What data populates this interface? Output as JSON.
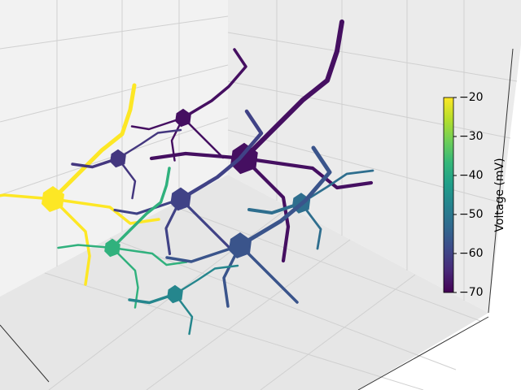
{
  "chart_data": {
    "type": "neuron",
    "values": [
      -20,
      -68,
      -62,
      -68,
      -60,
      -52,
      -38,
      -57,
      -47
    ],
    "colorbar": {
      "label": "Voltage (mV)",
      "colormap": "viridis",
      "lim": [
        -70,
        -20
      ],
      "ticks": [
        {
          "value": -20,
          "label": "−20"
        },
        {
          "value": -30,
          "label": "−30"
        },
        {
          "value": -40,
          "label": "−40"
        },
        {
          "value": -50,
          "label": "−50"
        },
        {
          "value": -60,
          "label": "−60"
        },
        {
          "value": -70,
          "label": "−70"
        }
      ]
    }
  }
}
